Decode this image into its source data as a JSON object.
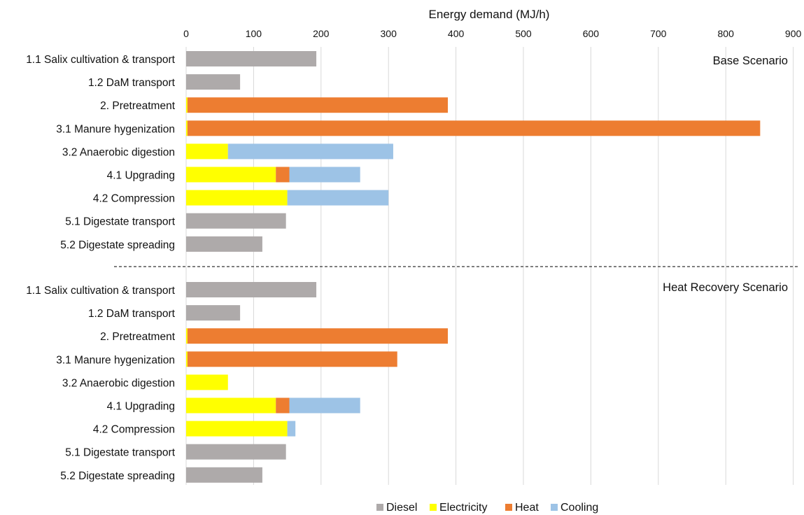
{
  "chart_data": {
    "type": "bar",
    "orientation": "horizontal",
    "stacked": true,
    "xlabel": "Energy demand (MJ/h)",
    "xlim": [
      0,
      900
    ],
    "x_ticks": [
      0,
      100,
      200,
      300,
      400,
      500,
      600,
      700,
      800,
      900
    ],
    "x_axis_position": "top",
    "grid": "vertical",
    "legend_position": "bottom-center",
    "stack_order": [
      "Diesel",
      "Electricity",
      "Heat",
      "Cooling"
    ],
    "colors": {
      "Diesel": "#aeaaaa",
      "Electricity": "#ffff00",
      "Heat": "#ed7d31",
      "Cooling": "#9dc3e6"
    },
    "groups": [
      {
        "label": "Base Scenario",
        "categories": [
          "1.1 Salix cultivation & transport",
          "1.2 DaM transport",
          "2. Pretreatment",
          "3.1 Manure hygenization",
          "3.2 Anaerobic digestion",
          "4.1 Upgrading",
          "4.2 Compression",
          "5.1 Digestate transport",
          "5.2 Digestate spreading"
        ],
        "series": [
          {
            "name": "Diesel",
            "values": [
              193,
              80,
              0,
              0,
              0,
              0,
              0,
              148,
              113
            ]
          },
          {
            "name": "Electricity",
            "values": [
              0,
              0,
              2,
              2,
              62,
              133,
              150,
              0,
              0
            ]
          },
          {
            "name": "Heat",
            "values": [
              0,
              0,
              386,
              849,
              0,
              20,
              0,
              0,
              0
            ]
          },
          {
            "name": "Cooling",
            "values": [
              0,
              0,
              0,
              0,
              245,
              105,
              150,
              0,
              0
            ]
          }
        ]
      },
      {
        "label": "Heat Recovery Scenario",
        "categories": [
          "1.1 Salix cultivation & transport",
          "1.2 DaM transport",
          "2. Pretreatment",
          "3.1 Manure hygenization",
          "3.2 Anaerobic digestion",
          "4.1 Upgrading",
          "4.2 Compression",
          "5.1 Digestate transport",
          "5.2 Digestate spreading"
        ],
        "series": [
          {
            "name": "Diesel",
            "values": [
              193,
              80,
              0,
              0,
              0,
              0,
              0,
              148,
              113
            ]
          },
          {
            "name": "Electricity",
            "values": [
              0,
              0,
              2,
              2,
              62,
              133,
              150,
              0,
              0
            ]
          },
          {
            "name": "Heat",
            "values": [
              0,
              0,
              386,
              311,
              0,
              20,
              0,
              0,
              0
            ]
          },
          {
            "name": "Cooling",
            "values": [
              0,
              0,
              0,
              0,
              0,
              105,
              12,
              0,
              0
            ]
          }
        ]
      }
    ]
  }
}
